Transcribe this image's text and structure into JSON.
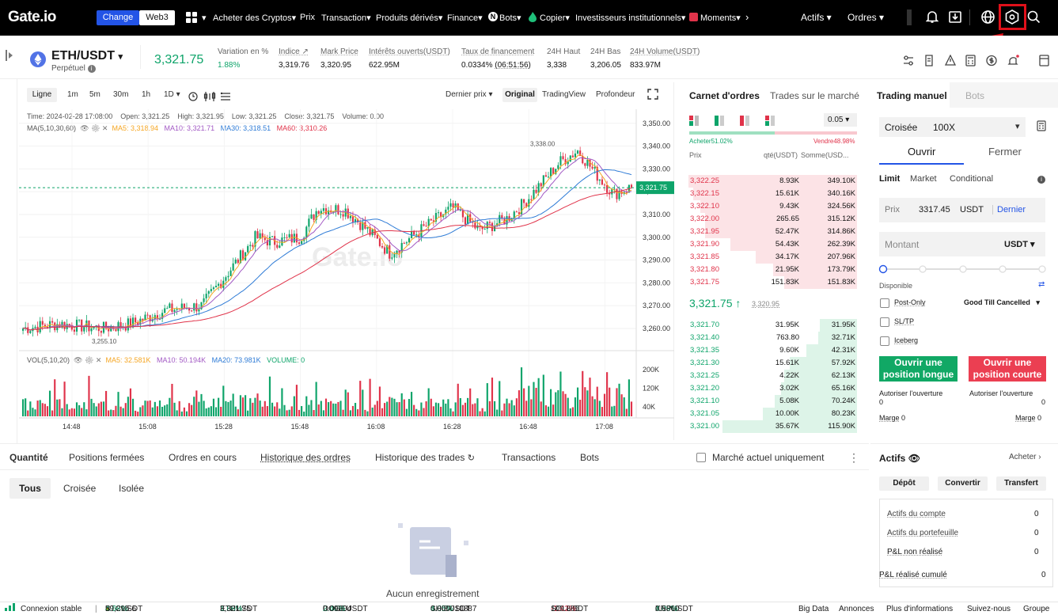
{
  "brand": {
    "logo": "Gate.io",
    "seg_change": "Change",
    "seg_web3": "Web3"
  },
  "nav": {
    "items": [
      "Acheter des Cryptos",
      "Prix",
      "Transaction",
      "Produits dérivés",
      "Finance",
      "Bots",
      "Copier",
      "Investisseurs institutionnels",
      "Moments"
    ],
    "actifs": "Actifs",
    "ordres": "Ordres"
  },
  "ticker": {
    "pair": "ETH/USDT",
    "sub": "Perpétuel",
    "price": "3,321.75",
    "stats": [
      {
        "label": "Variation en %",
        "value": "1.88%"
      },
      {
        "label": "Indice",
        "value": "3,319.76"
      },
      {
        "label": "Mark Price",
        "value": "3,320.95"
      },
      {
        "label": "Intérêts ouverts(USDT)",
        "value": "622.95M"
      },
      {
        "label": "Taux de financement",
        "value": "0.0334%",
        "extra": "(06:51:56)"
      },
      {
        "label": "24H Haut",
        "value": "3,338"
      },
      {
        "label": "24H Bas",
        "value": "3,206.05"
      },
      {
        "label": "24H Volume(USDT)",
        "value": "833.97M"
      }
    ]
  },
  "chart": {
    "toolbar": {
      "type": "Ligne",
      "intervals": [
        "1m",
        "5m",
        "30m",
        "1h",
        "1D"
      ],
      "price_mode": "Dernier prix",
      "views": [
        "Original",
        "TradingView",
        "Profondeur"
      ]
    },
    "info": "Time: 2024-02-28 17:08:00    Open: 3,321.25    High: 3,321.95    Low: 3,321.25    Close: 3,321.75    Volume: 0.00",
    "ma_label": "MA(5,10,30,60)",
    "ma": [
      {
        "label": "MA5: 3,318.94",
        "color": "#f5a623"
      },
      {
        "label": "MA10: 3,321.71",
        "color": "#a259c4"
      },
      {
        "label": "MA30: 3,318.51",
        "color": "#2e7bd6"
      },
      {
        "label": "MA60: 3,310.26",
        "color": "#e0334a"
      }
    ],
    "vol_label": "VOL(5,10,20)",
    "vol_ma": [
      {
        "label": "MA5: 32.581K",
        "color": "#f5a623"
      },
      {
        "label": "MA10: 50.194K",
        "color": "#a259c4"
      },
      {
        "label": "MA20: 73.981K",
        "color": "#2e7bd6"
      },
      {
        "label": "VOLUME: 0",
        "color": "#0ea46a"
      }
    ],
    "yticks": [
      "3,350.00",
      "3,340.00",
      "3,330.00",
      "3,320.00",
      "3,310.00",
      "3,300.00",
      "3,290.00",
      "3,280.00",
      "3,270.00",
      "3,260.00"
    ],
    "vticks": [
      "200K",
      "120K",
      "40K"
    ],
    "xticks": [
      "14:48",
      "15:08",
      "15:28",
      "15:48",
      "16:08",
      "16:28",
      "16:48",
      "17:08"
    ],
    "last_price": "3,321.75",
    "high_mark": "3,338.00",
    "low_mark": "3,255.10",
    "watermark": "Gate.io"
  },
  "orderbook": {
    "tabs": [
      "Carnet d'ordres",
      "Trades sur le marché"
    ],
    "tick": "0.05",
    "buy_pct": "Acheter51.02%",
    "sell_pct": "Vendre48.98%",
    "cols": [
      "Prix",
      "qté(USDT)",
      "Somme(USD..."
    ],
    "asks": [
      [
        "3,322.25",
        "8.93K",
        "349.10K",
        1.0
      ],
      [
        "3,322.15",
        "15.61K",
        "340.16K",
        0.97
      ],
      [
        "3,322.10",
        "9.43K",
        "324.56K",
        0.93
      ],
      [
        "3,322.00",
        "265.65",
        "315.12K",
        0.9
      ],
      [
        "3,321.95",
        "52.47K",
        "314.86K",
        0.9
      ],
      [
        "3,321.90",
        "54.43K",
        "262.39K",
        0.75
      ],
      [
        "3,321.85",
        "34.17K",
        "207.96K",
        0.6
      ],
      [
        "3,321.80",
        "21.95K",
        "173.79K",
        0.5
      ],
      [
        "3,321.75",
        "151.83K",
        "151.83K",
        0.43
      ]
    ],
    "mid": "3,321.75",
    "mark": "3,320.95",
    "bids": [
      [
        "3,321.70",
        "31.95K",
        "31.95K",
        0.22
      ],
      [
        "3,321.40",
        "763.80",
        "32.71K",
        0.23
      ],
      [
        "3,321.35",
        "9.60K",
        "42.31K",
        0.3
      ],
      [
        "3,321.30",
        "15.61K",
        "57.92K",
        0.4
      ],
      [
        "3,321.25",
        "4.22K",
        "62.13K",
        0.43
      ],
      [
        "3,321.20",
        "3.02K",
        "65.16K",
        0.45
      ],
      [
        "3,321.10",
        "5.08K",
        "70.24K",
        0.49
      ],
      [
        "3,321.05",
        "10.00K",
        "80.23K",
        0.56
      ],
      [
        "3,321.00",
        "35.67K",
        "115.90K",
        0.8
      ]
    ]
  },
  "trade": {
    "tabs": [
      "Trading manuel",
      "Bots"
    ],
    "margin_mode": "Croisée",
    "leverage": "100X",
    "open": "Ouvrir",
    "close": "Fermer",
    "order_types": [
      "Limit",
      "Market",
      "Conditional"
    ],
    "price_label": "Prix",
    "price_value": "3317.45",
    "price_unit": "USDT",
    "price_last": "Dernier",
    "amount_label": "Montant",
    "amount_unit": "USDT",
    "available": "Disponible",
    "post_only": "Post-Only",
    "tif": "Good Till Cancelled",
    "sltp": "SL/TP",
    "iceberg": "Iceberg",
    "long_btn": "Ouvrir une position longue",
    "short_btn": "Ouvrir une position courte",
    "allow_open": "Autoriser l'ouverture",
    "zero": "0",
    "margin": "Marge",
    "margin_val": "0"
  },
  "bottom": {
    "tabs": [
      "Quantité",
      "Positions fermées",
      "Ordres en cours",
      "Historique des ordres",
      "Historique des trades",
      "Transactions",
      "Bots"
    ],
    "current_only": "Marché actuel uniquement",
    "subtabs": [
      "Tous",
      "Croisée",
      "Isolée"
    ],
    "empty": "Aucun enregistrement"
  },
  "assets": {
    "title": "Actifs",
    "buy": "Acheter",
    "buttons": [
      "Dépôt",
      "Convertir",
      "Transfert"
    ],
    "rows": [
      [
        "Actifs du compte",
        "0"
      ],
      [
        "Actifs du portefeuille",
        "0"
      ],
      [
        "P&L non réalisé",
        "0"
      ],
      [
        "P&L réalisé cumulé",
        "0"
      ]
    ]
  },
  "footer": {
    "status": "Connexion stable",
    "tickers": [
      [
        "BTCUSDT",
        "4.68%",
        "59,295.6"
      ],
      [
        "ETHUSDT",
        "1.88%",
        "3,321.75"
      ],
      [
        "DOGEUSDT",
        "2.40%",
        "0.09804"
      ],
      [
        "SHIBUSDT",
        "4.05%",
        "0.000010887"
      ],
      [
        "SOLUSDT",
        "-1.42%",
        "109.885"
      ],
      [
        "XRPUSDT",
        "4.09%",
        "0.5860"
      ]
    ],
    "links": [
      "Big Data",
      "Annonces",
      "Plus d'informations",
      "Suivez-nous",
      "Groupe"
    ]
  },
  "colors": {
    "up": "#0ea46a",
    "down": "#e0334a",
    "highlight": "#e0101a"
  }
}
